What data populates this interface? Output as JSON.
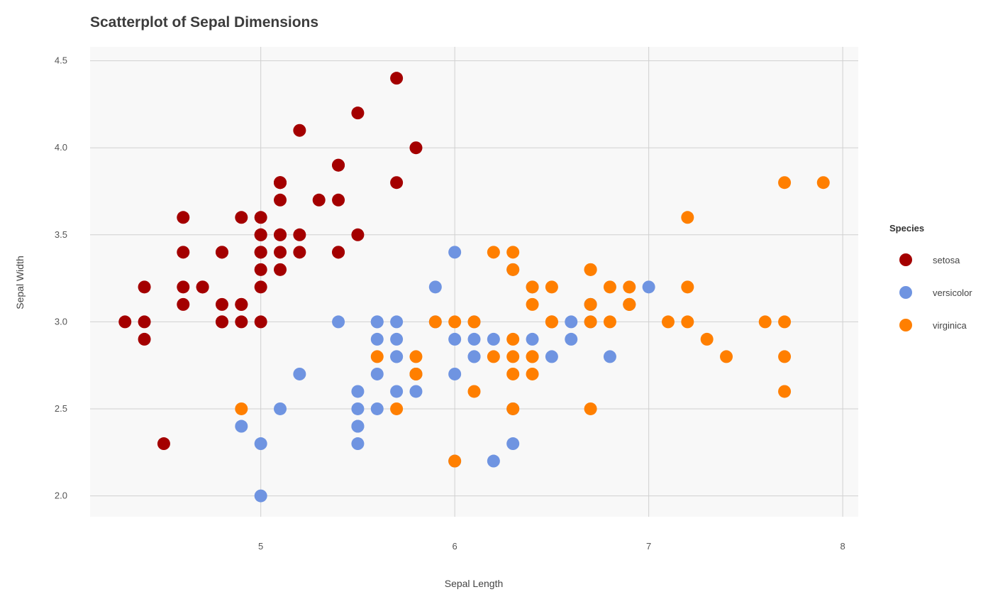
{
  "chart_data": {
    "type": "scatter",
    "title": "Scatterplot of Sepal Dimensions",
    "xlabel": "Sepal Length",
    "ylabel": "Sepal Width",
    "xlim": [
      4.12,
      8.08
    ],
    "ylim": [
      1.88,
      4.58
    ],
    "xticks": [
      5,
      6,
      7,
      8
    ],
    "xtick_labels": [
      "5",
      "6",
      "7",
      "8"
    ],
    "yticks": [
      2.0,
      2.5,
      3.0,
      3.5,
      4.0,
      4.5
    ],
    "ytick_labels": [
      "2.0",
      "2.5",
      "3.0",
      "3.5",
      "4.0",
      "4.5"
    ],
    "grid": true,
    "legend_title": "Species",
    "legend_position": "right",
    "series": [
      {
        "name": "setosa",
        "color": "#a40000",
        "points": [
          [
            5.1,
            3.5
          ],
          [
            4.9,
            3.0
          ],
          [
            4.7,
            3.2
          ],
          [
            4.6,
            3.1
          ],
          [
            5.0,
            3.6
          ],
          [
            5.4,
            3.9
          ],
          [
            4.6,
            3.4
          ],
          [
            5.0,
            3.4
          ],
          [
            4.4,
            2.9
          ],
          [
            4.9,
            3.1
          ],
          [
            5.4,
            3.7
          ],
          [
            4.8,
            3.4
          ],
          [
            4.8,
            3.0
          ],
          [
            4.3,
            3.0
          ],
          [
            5.8,
            4.0
          ],
          [
            5.7,
            4.4
          ],
          [
            5.4,
            3.9
          ],
          [
            5.1,
            3.5
          ],
          [
            5.7,
            3.8
          ],
          [
            5.1,
            3.8
          ],
          [
            5.4,
            3.4
          ],
          [
            5.1,
            3.7
          ],
          [
            4.6,
            3.6
          ],
          [
            5.1,
            3.3
          ],
          [
            4.8,
            3.4
          ],
          [
            5.0,
            3.0
          ],
          [
            5.0,
            3.4
          ],
          [
            5.2,
            3.5
          ],
          [
            5.2,
            3.4
          ],
          [
            4.7,
            3.2
          ],
          [
            4.8,
            3.1
          ],
          [
            5.4,
            3.4
          ],
          [
            5.2,
            4.1
          ],
          [
            5.5,
            4.2
          ],
          [
            4.9,
            3.1
          ],
          [
            5.0,
            3.2
          ],
          [
            5.5,
            3.5
          ],
          [
            4.9,
            3.6
          ],
          [
            4.4,
            3.0
          ],
          [
            5.1,
            3.4
          ],
          [
            5.0,
            3.5
          ],
          [
            4.5,
            2.3
          ],
          [
            4.4,
            3.2
          ],
          [
            5.0,
            3.5
          ],
          [
            5.1,
            3.8
          ],
          [
            4.8,
            3.0
          ],
          [
            5.1,
            3.8
          ],
          [
            4.6,
            3.2
          ],
          [
            5.3,
            3.7
          ],
          [
            5.0,
            3.3
          ]
        ]
      },
      {
        "name": "versicolor",
        "color": "#6f94e1",
        "points": [
          [
            7.0,
            3.2
          ],
          [
            6.4,
            3.2
          ],
          [
            6.9,
            3.1
          ],
          [
            5.5,
            2.3
          ],
          [
            6.5,
            2.8
          ],
          [
            5.7,
            2.8
          ],
          [
            6.3,
            3.3
          ],
          [
            4.9,
            2.4
          ],
          [
            6.6,
            2.9
          ],
          [
            5.2,
            2.7
          ],
          [
            5.0,
            2.0
          ],
          [
            5.9,
            3.0
          ],
          [
            6.0,
            2.2
          ],
          [
            6.1,
            2.9
          ],
          [
            5.6,
            2.9
          ],
          [
            6.7,
            3.1
          ],
          [
            5.6,
            3.0
          ],
          [
            5.8,
            2.7
          ],
          [
            6.2,
            2.2
          ],
          [
            5.6,
            2.5
          ],
          [
            5.9,
            3.2
          ],
          [
            6.1,
            2.8
          ],
          [
            6.3,
            2.5
          ],
          [
            6.1,
            2.8
          ],
          [
            6.4,
            2.9
          ],
          [
            6.6,
            3.0
          ],
          [
            6.8,
            2.8
          ],
          [
            6.7,
            3.0
          ],
          [
            6.0,
            2.9
          ],
          [
            5.7,
            2.6
          ],
          [
            5.5,
            2.4
          ],
          [
            5.5,
            2.4
          ],
          [
            5.8,
            2.7
          ],
          [
            6.0,
            2.7
          ],
          [
            5.4,
            3.0
          ],
          [
            6.0,
            3.4
          ],
          [
            6.7,
            3.1
          ],
          [
            6.3,
            2.3
          ],
          [
            5.6,
            3.0
          ],
          [
            5.5,
            2.5
          ],
          [
            5.5,
            2.6
          ],
          [
            6.1,
            3.0
          ],
          [
            5.8,
            2.6
          ],
          [
            5.0,
            2.3
          ],
          [
            5.6,
            2.7
          ],
          [
            5.7,
            3.0
          ],
          [
            5.7,
            2.9
          ],
          [
            6.2,
            2.9
          ],
          [
            5.1,
            2.5
          ],
          [
            5.7,
            2.8
          ]
        ]
      },
      {
        "name": "virginica",
        "color": "#ff7f00",
        "points": [
          [
            6.3,
            3.3
          ],
          [
            5.8,
            2.7
          ],
          [
            7.1,
            3.0
          ],
          [
            6.3,
            2.9
          ],
          [
            6.5,
            3.0
          ],
          [
            7.6,
            3.0
          ],
          [
            4.9,
            2.5
          ],
          [
            7.3,
            2.9
          ],
          [
            6.7,
            2.5
          ],
          [
            7.2,
            3.6
          ],
          [
            6.5,
            3.2
          ],
          [
            6.4,
            2.7
          ],
          [
            6.8,
            3.0
          ],
          [
            5.7,
            2.5
          ],
          [
            5.8,
            2.8
          ],
          [
            6.4,
            3.2
          ],
          [
            6.5,
            3.0
          ],
          [
            7.7,
            3.8
          ],
          [
            7.7,
            2.6
          ],
          [
            6.0,
            2.2
          ],
          [
            6.9,
            3.2
          ],
          [
            5.6,
            2.8
          ],
          [
            7.7,
            2.8
          ],
          [
            6.3,
            2.7
          ],
          [
            6.7,
            3.3
          ],
          [
            7.2,
            3.2
          ],
          [
            6.2,
            2.8
          ],
          [
            6.1,
            3.0
          ],
          [
            6.4,
            2.8
          ],
          [
            7.2,
            3.0
          ],
          [
            7.4,
            2.8
          ],
          [
            7.9,
            3.8
          ],
          [
            6.4,
            2.8
          ],
          [
            6.3,
            2.8
          ],
          [
            6.1,
            2.6
          ],
          [
            7.7,
            3.0
          ],
          [
            6.3,
            3.4
          ],
          [
            6.4,
            3.1
          ],
          [
            6.0,
            3.0
          ],
          [
            6.9,
            3.1
          ],
          [
            6.7,
            3.1
          ],
          [
            6.9,
            3.1
          ],
          [
            5.8,
            2.7
          ],
          [
            6.8,
            3.2
          ],
          [
            6.7,
            3.3
          ],
          [
            6.7,
            3.0
          ],
          [
            6.3,
            2.5
          ],
          [
            6.5,
            3.0
          ],
          [
            6.2,
            3.4
          ],
          [
            5.9,
            3.0
          ]
        ]
      }
    ]
  }
}
